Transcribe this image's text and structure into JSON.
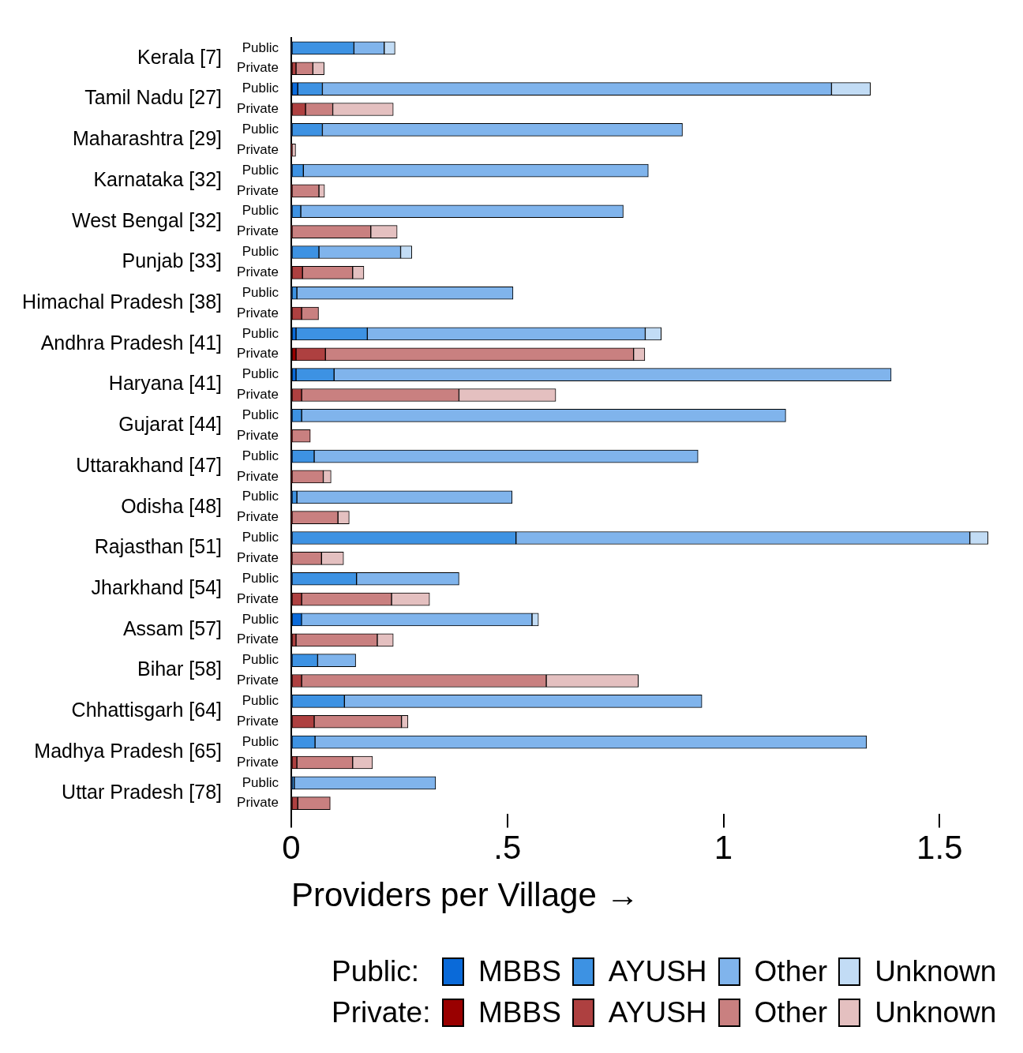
{
  "chart_data": {
    "type": "bar",
    "orientation": "horizontal",
    "stacked": true,
    "xlabel": "Providers per Village →",
    "categories": [
      "Public",
      "Private",
      "Public",
      "Private",
      "Public",
      "Private",
      "Public",
      "Private",
      "Public",
      "Private",
      "Public",
      "Private",
      "Public",
      "Private",
      "Public",
      "Private",
      "Public",
      "Private",
      "Public",
      "Private",
      "Public",
      "Private",
      "Public",
      "Private",
      "Public",
      "Private",
      "Public",
      "Private",
      "Public",
      "Private",
      "Public",
      "Private",
      "Public",
      "Private",
      "Public",
      "Private",
      "Public",
      "Private"
    ],
    "annotations": [
      "Kerala [7]",
      "Tamil Nadu [27]",
      "Maharashtra [29]",
      "Karnataka [32]",
      "West Bengal [32]",
      "Punjab [33]",
      "Himachal Pradesh [38]",
      "Andhra Pradesh [41]",
      "Haryana [41]",
      "Gujarat [44]",
      "Uttarakhand [47]",
      "Odisha [48]",
      "Rajasthan [51]",
      "Jharkhand [54]",
      "Assam [57]",
      "Bihar [58]",
      "Chhattisgarh [64]",
      "Madhya Pradesh [65]",
      "Uttar Pradesh [78]",
      "Public:",
      "Private:"
    ],
    "series": [
      {
        "name": "MBBS",
        "color": "#0a6ad9",
        "values": [
          0,
          null,
          0.015,
          null,
          0,
          null,
          0,
          null,
          0,
          null,
          0,
          null,
          0,
          null,
          0.011,
          null,
          0.011,
          null,
          0,
          null,
          0,
          null,
          0,
          null,
          0,
          null,
          0,
          null,
          0.024,
          null,
          0,
          null,
          0,
          null,
          0,
          null,
          0,
          null
        ]
      },
      {
        "name": "AYUSH",
        "color": "#3d92e3",
        "values": [
          0.145,
          null,
          0.057,
          null,
          0.072,
          null,
          0.028,
          null,
          0.022,
          null,
          0.064,
          null,
          0.013,
          null,
          0.165,
          null,
          0.088,
          null,
          0.024,
          null,
          0.053,
          null,
          0.013,
          null,
          0.52,
          null,
          0.151,
          null,
          0,
          null,
          0.061,
          null,
          0.123,
          null,
          0.055,
          null,
          0.007,
          null
        ]
      },
      {
        "name": "Other",
        "color": "#80b4ec",
        "values": [
          0.07,
          null,
          1.178,
          null,
          0.833,
          null,
          0.798,
          null,
          0.746,
          null,
          0.189,
          null,
          0.5,
          null,
          0.643,
          null,
          1.289,
          null,
          1.12,
          null,
          0.888,
          null,
          0.498,
          null,
          1.05,
          null,
          0.237,
          null,
          0.533,
          null,
          0.088,
          null,
          0.827,
          null,
          1.276,
          null,
          0.327,
          null
        ]
      },
      {
        "name": "Unknown",
        "color": "#c2dcf5",
        "values": [
          0.025,
          null,
          0.09,
          null,
          0,
          null,
          0,
          null,
          0,
          null,
          0.026,
          null,
          0,
          null,
          0.037,
          null,
          0,
          null,
          0,
          null,
          0,
          null,
          0,
          null,
          0.042,
          null,
          0,
          null,
          0.015,
          null,
          0,
          null,
          0,
          null,
          0,
          null,
          0,
          null
        ]
      },
      {
        "name": "MBBS",
        "color": "#990000",
        "values": [
          null,
          0,
          null,
          0,
          null,
          0,
          null,
          0,
          null,
          0,
          null,
          0,
          null,
          0,
          null,
          0.011,
          null,
          0,
          null,
          0,
          null,
          0,
          null,
          0,
          null,
          0,
          null,
          0,
          null,
          0,
          null,
          0,
          null,
          0,
          null,
          0,
          null,
          0
        ]
      },
      {
        "name": "AYUSH",
        "color": "#ae4040",
        "values": [
          null,
          0.011,
          null,
          0.033,
          null,
          0,
          null,
          0,
          null,
          0,
          null,
          0.026,
          null,
          0.024,
          null,
          0.068,
          null,
          0.024,
          null,
          0,
          null,
          0,
          null,
          0,
          null,
          0,
          null,
          0.024,
          null,
          0.011,
          null,
          0.024,
          null,
          0.053,
          null,
          0.013,
          null,
          0.015
        ]
      },
      {
        "name": "Other",
        "color": "#c98080",
        "values": [
          null,
          0.039,
          null,
          0.063,
          null,
          0,
          null,
          0.064,
          null,
          0.184,
          null,
          0.116,
          null,
          0.039,
          null,
          0.713,
          null,
          0.364,
          null,
          0.044,
          null,
          0.074,
          null,
          0.108,
          null,
          0.07,
          null,
          0.208,
          null,
          0.188,
          null,
          0.566,
          null,
          0.202,
          null,
          0.129,
          null,
          0.075
        ]
      },
      {
        "name": "Unknown",
        "color": "#e4c0c0",
        "values": [
          null,
          0.026,
          null,
          0.14,
          null,
          0.01,
          null,
          0.013,
          null,
          0.061,
          null,
          0.026,
          null,
          0,
          null,
          0.026,
          null,
          0.224,
          null,
          0,
          null,
          0.018,
          null,
          0.026,
          null,
          0.051,
          null,
          0.088,
          null,
          0.037,
          null,
          0.213,
          null,
          0.015,
          null,
          0.046,
          null,
          0
        ]
      }
    ],
    "xlim": [
      0,
      1.62
    ],
    "xticks": [
      0,
      {
        "value": 0.5,
        "label": ".5"
      },
      1,
      1.5
    ],
    "grid": false,
    "legend": "bottom"
  }
}
